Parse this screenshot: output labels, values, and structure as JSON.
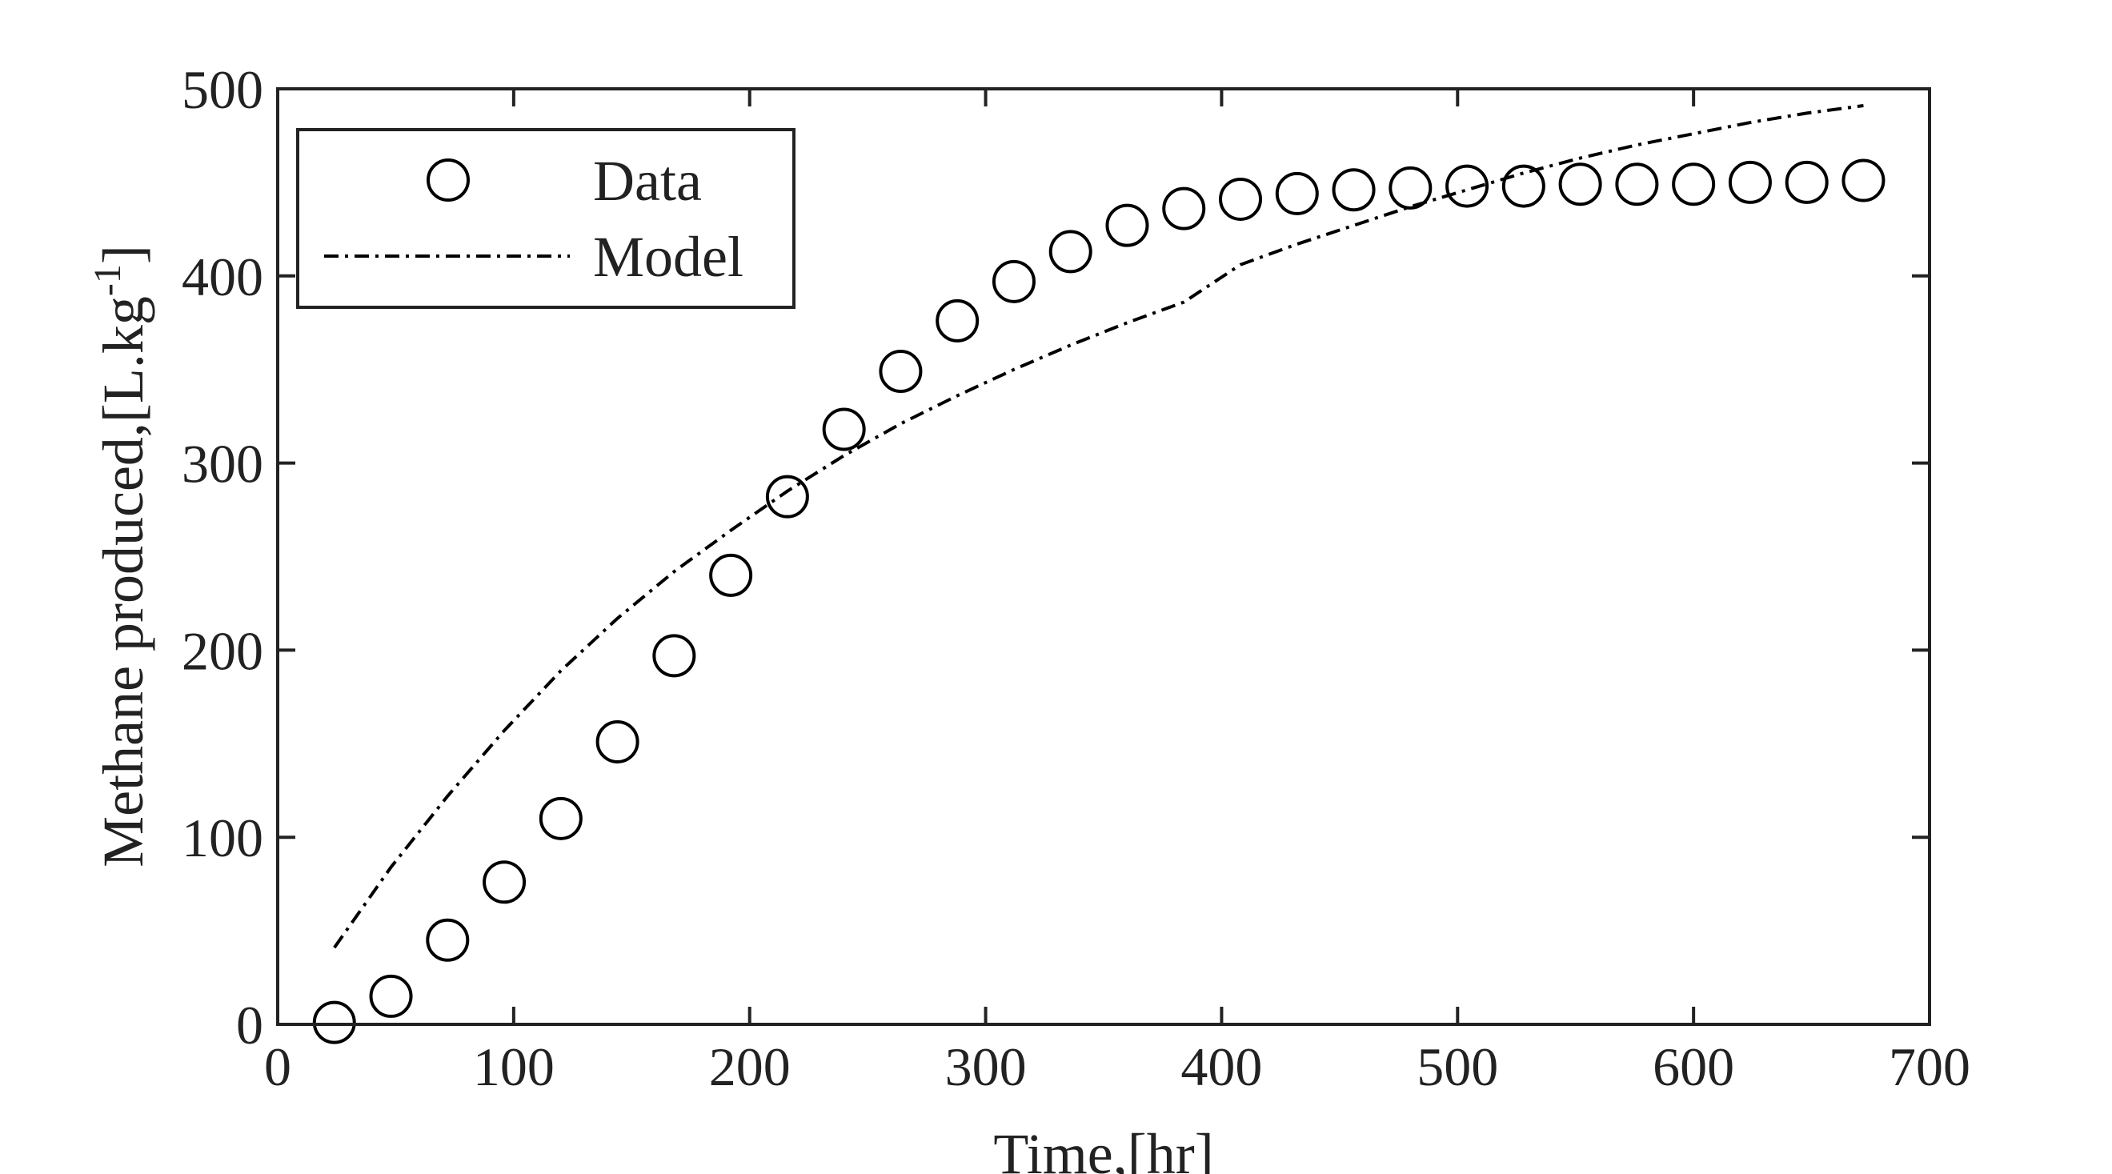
{
  "chart_data": {
    "type": "scatter",
    "title": "",
    "xlabel": "Time,[hr]",
    "ylabel_main": "Methane produced,[L.kg",
    "ylabel_sup": "-1",
    "ylabel_close": "]",
    "xlim": [
      0,
      700
    ],
    "ylim": [
      0,
      500
    ],
    "xticks": [
      0,
      100,
      200,
      300,
      400,
      500,
      600,
      700
    ],
    "yticks": [
      0,
      100,
      200,
      300,
      400,
      500
    ],
    "grid": false,
    "legend_position": "top-left",
    "series": [
      {
        "name": "Data",
        "kind": "markers",
        "marker": "open-circle",
        "color": "#000000",
        "x": [
          24,
          48,
          72,
          96,
          120,
          144,
          168,
          192,
          216,
          240,
          264,
          288,
          312,
          336,
          360,
          384,
          408,
          432,
          456,
          480,
          504,
          528,
          552,
          576,
          600,
          624,
          648,
          672
        ],
        "y": [
          1,
          15,
          45,
          76,
          110,
          151,
          197,
          240,
          282,
          318,
          349,
          376,
          397,
          413,
          427,
          436,
          441,
          444,
          446,
          447,
          448,
          448,
          449,
          449,
          449,
          450,
          450,
          451
        ]
      },
      {
        "name": "Model",
        "kind": "line",
        "line_style": "dash-dot",
        "color": "#000000",
        "x": [
          24,
          48,
          72,
          96,
          120,
          144,
          168,
          192,
          216,
          240,
          264,
          288,
          312,
          336,
          360,
          384,
          408,
          432,
          456,
          480,
          504,
          528,
          552,
          576,
          600,
          624,
          648,
          672
        ],
        "y": [
          41,
          84,
          122,
          157,
          189,
          217,
          242,
          264,
          285,
          304,
          321,
          336,
          350,
          363,
          375,
          386,
          406,
          417,
          427,
          437,
          446,
          455,
          463,
          470,
          476,
          482,
          487,
          491
        ]
      }
    ]
  }
}
